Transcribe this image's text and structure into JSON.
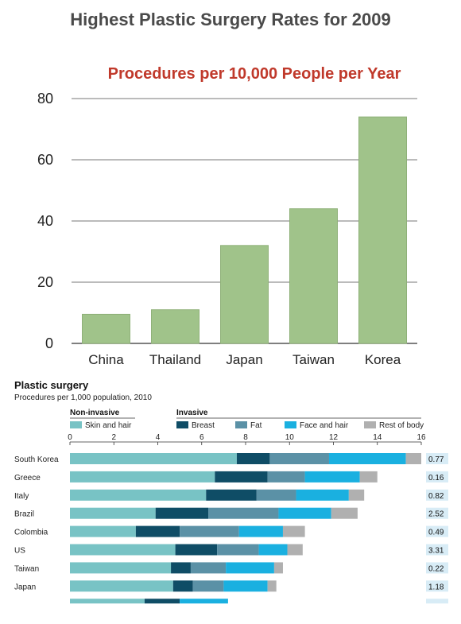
{
  "top_title": "Highest Plastic Surgery Rates for 2009",
  "colors": {
    "bar1": "#a0c38a",
    "bar1_stroke": "#8fb179",
    "skin": "#78c3c5",
    "breast": "#0f4d66",
    "fat": "#5b91a6",
    "face": "#1ab0e0",
    "rest": "#b0b0b0",
    "rightcol": "#d8ecf6"
  },
  "chart_data": [
    {
      "type": "bar",
      "title": "Procedures per 10,000 People per Year",
      "categories": [
        "China",
        "Thailand",
        "Japan",
        "Taiwan",
        "Korea"
      ],
      "values": [
        9.5,
        11,
        32,
        44,
        74
      ],
      "ylim": [
        0,
        80
      ],
      "yticks": [
        0,
        20,
        40,
        60,
        80
      ],
      "grid": true
    },
    {
      "type": "bar",
      "stacked": true,
      "orientation": "horizontal",
      "title": "Plastic surgery",
      "subtitle": "Procedures per 1,000 population, 2010",
      "group_labels": {
        "non_invasive": "Non-invasive",
        "invasive": "Invasive"
      },
      "legend": [
        "Skin and hair",
        "Breast",
        "Fat",
        "Face and hair",
        "Rest of body"
      ],
      "xlim": [
        0,
        16
      ],
      "xticks": [
        0,
        2,
        4,
        6,
        8,
        10,
        12,
        14,
        16
      ],
      "categories": [
        "South Korea",
        "Greece",
        "Italy",
        "Brazil",
        "Colombia",
        "US",
        "Taiwan",
        "Japan"
      ],
      "series": [
        {
          "name": "Skin and hair",
          "values": [
            7.6,
            6.6,
            6.2,
            3.9,
            3.0,
            4.8,
            4.6,
            4.7
          ]
        },
        {
          "name": "Breast",
          "values": [
            1.5,
            2.4,
            2.3,
            2.4,
            2.0,
            1.9,
            0.9,
            0.9
          ]
        },
        {
          "name": "Fat",
          "values": [
            2.7,
            1.7,
            1.8,
            3.2,
            2.7,
            1.9,
            1.6,
            1.4
          ]
        },
        {
          "name": "Face and hair",
          "values": [
            3.5,
            2.5,
            2.4,
            2.4,
            2.0,
            1.3,
            2.2,
            2.0
          ]
        },
        {
          "name": "Rest of body",
          "values": [
            0.7,
            0.8,
            0.7,
            1.2,
            1.0,
            0.7,
            0.4,
            0.4
          ]
        }
      ],
      "right_values": [
        "0.77",
        "0.16",
        "0.82",
        "2.52",
        "0.49",
        "3.31",
        "0.22",
        "1.18"
      ]
    }
  ]
}
